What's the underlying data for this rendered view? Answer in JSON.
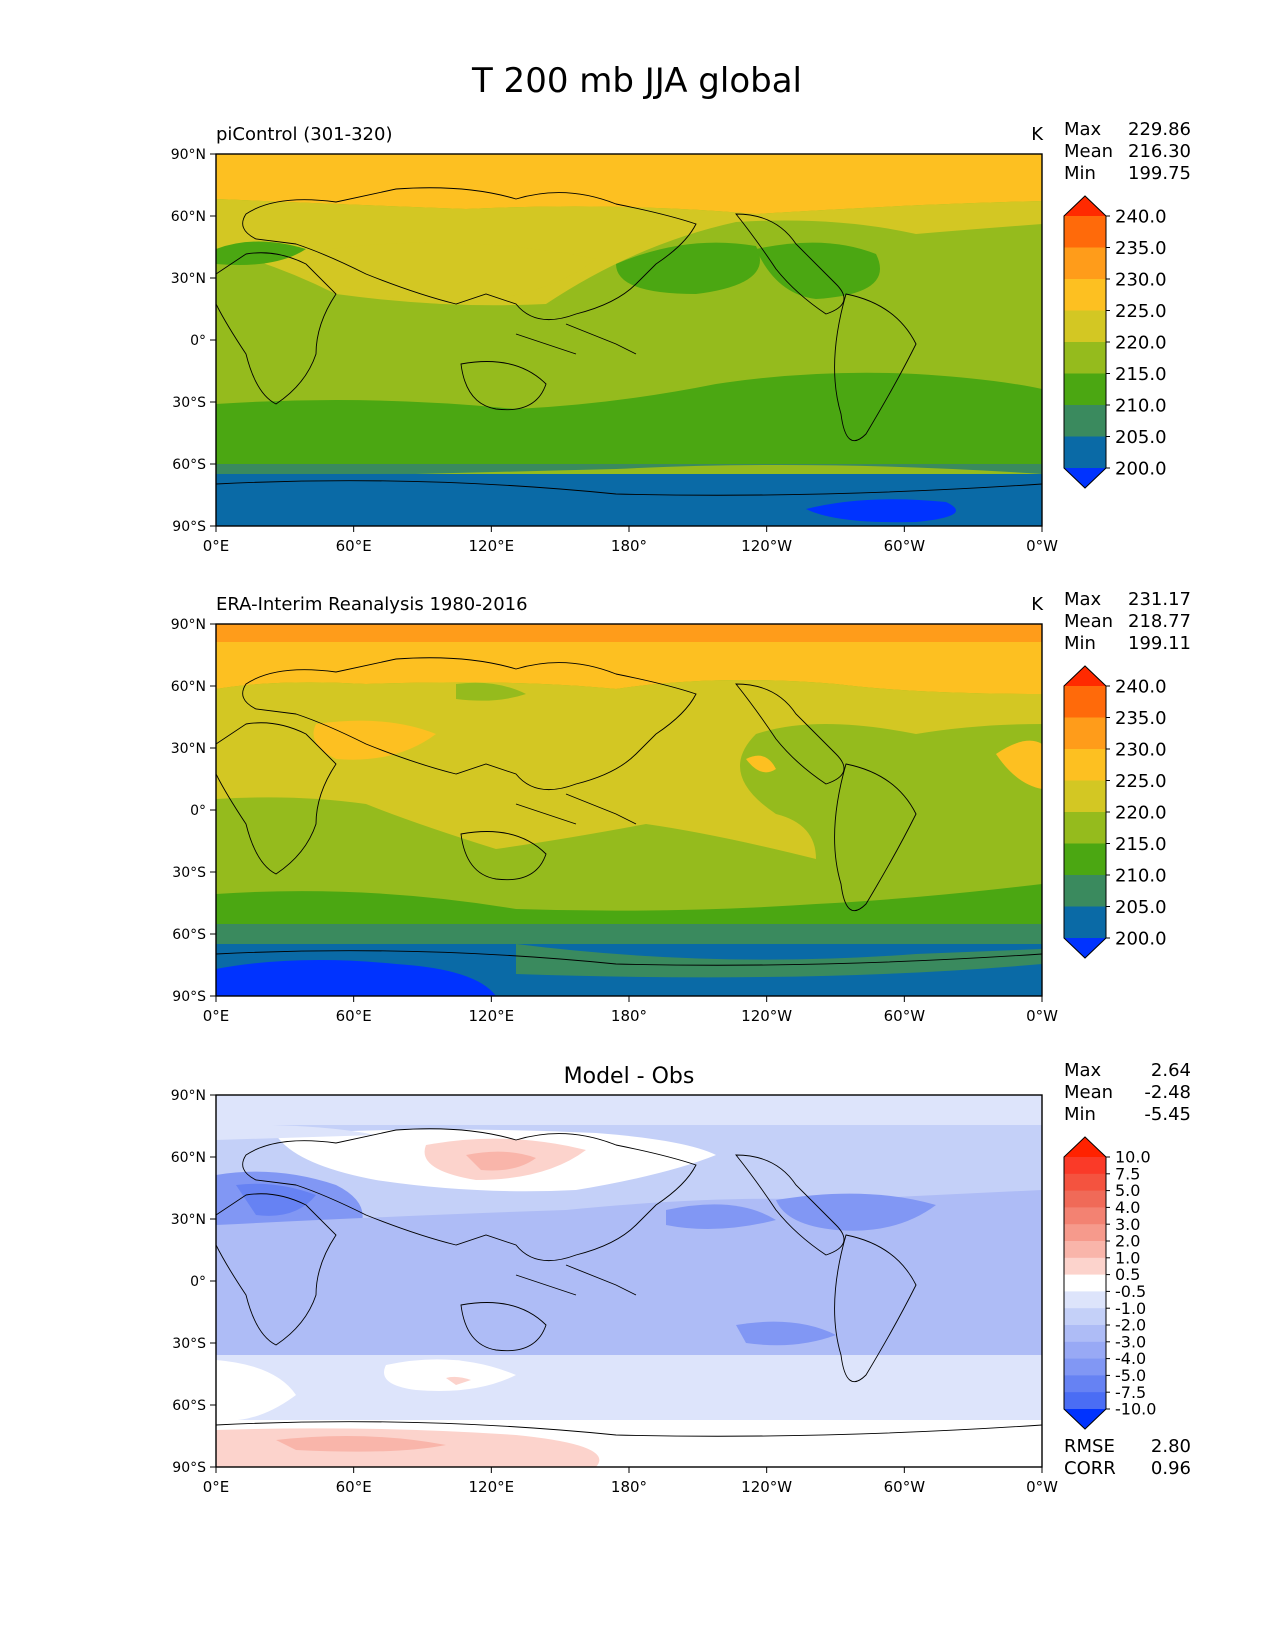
{
  "figure": {
    "title": "T 200 mb JJA global"
  },
  "axes": {
    "lat_ticks": [
      "90°N",
      "60°N",
      "30°N",
      "0°",
      "30°S",
      "60°S",
      "90°S"
    ],
    "lon_ticks": [
      "0°E",
      "60°E",
      "120°E",
      "180°",
      "120°W",
      "60°W",
      "0°W"
    ]
  },
  "panels": [
    {
      "id": "model",
      "title_left": "piControl (301-320)",
      "title_center": "",
      "units": "K",
      "stats": [
        {
          "label": "Max",
          "value": "229.86"
        },
        {
          "label": "Mean",
          "value": "216.30"
        },
        {
          "label": "Min",
          "value": "199.75"
        }
      ],
      "extra_stats": [],
      "colorbar": {
        "labels": [
          "240.0",
          "235.0",
          "230.0",
          "225.0",
          "220.0",
          "215.0",
          "210.0",
          "205.0",
          "200.0"
        ],
        "colors": [
          "#ff2a00",
          "#ff6a0a",
          "#ff9c1a",
          "#fdc021",
          "#d3c723",
          "#95bb1d",
          "#4ba712",
          "#3a8a5e",
          "#0a6aa6",
          "#0033ff"
        ]
      }
    },
    {
      "id": "obs",
      "title_left": "ERA-Interim Reanalysis 1980-2016",
      "title_center": "",
      "units": "K",
      "stats": [
        {
          "label": "Max",
          "value": "231.17"
        },
        {
          "label": "Mean",
          "value": "218.77"
        },
        {
          "label": "Min",
          "value": "199.11"
        }
      ],
      "extra_stats": [],
      "colorbar": {
        "labels": [
          "240.0",
          "235.0",
          "230.0",
          "225.0",
          "220.0",
          "215.0",
          "210.0",
          "205.0",
          "200.0"
        ],
        "colors": [
          "#ff2a00",
          "#ff6a0a",
          "#ff9c1a",
          "#fdc021",
          "#d3c723",
          "#95bb1d",
          "#4ba712",
          "#3a8a5e",
          "#0a6aa6",
          "#0033ff"
        ]
      }
    },
    {
      "id": "diff",
      "title_left": "",
      "title_center": "Model - Obs",
      "units": "",
      "stats": [
        {
          "label": "Max",
          "value": "2.64"
        },
        {
          "label": "Mean",
          "value": "-2.48"
        },
        {
          "label": "Min",
          "value": "-5.45"
        }
      ],
      "extra_stats": [
        {
          "label": "RMSE",
          "value": "2.80"
        },
        {
          "label": "CORR",
          "value": "0.96"
        }
      ],
      "colorbar": {
        "labels": [
          "10.0",
          "7.5",
          "5.0",
          "4.0",
          "3.0",
          "2.0",
          "1.0",
          "0.5",
          "-0.5",
          "-1.0",
          "-2.0",
          "-3.0",
          "-4.0",
          "-5.0",
          "-7.5",
          "-10.0"
        ],
        "colors": [
          "#ff2200",
          "#fa3a28",
          "#f4533f",
          "#f06a58",
          "#f38272",
          "#f69a8c",
          "#f9b5aa",
          "#fcd3cc",
          "#ffffff",
          "#dde4fb",
          "#c4d0f8",
          "#aebcf6",
          "#98a9f5",
          "#8197f4",
          "#6682f3",
          "#4a6df4",
          "#0033ff"
        ]
      }
    }
  ],
  "chart_data": [
    {
      "type": "heatmap",
      "title": "piControl (301-320)",
      "units": "K",
      "x": "longitude 0°E–360°",
      "y": "latitude 90°S–90°N",
      "levels": [
        200.0,
        205.0,
        210.0,
        215.0,
        220.0,
        225.0,
        230.0,
        235.0,
        240.0
      ],
      "stats": {
        "max": 229.86,
        "mean": 216.3,
        "min": 199.75
      }
    },
    {
      "type": "heatmap",
      "title": "ERA-Interim Reanalysis 1980-2016",
      "units": "K",
      "levels": [
        200.0,
        205.0,
        210.0,
        215.0,
        220.0,
        225.0,
        230.0,
        235.0,
        240.0
      ],
      "stats": {
        "max": 231.17,
        "mean": 218.77,
        "min": 199.11
      }
    },
    {
      "type": "heatmap",
      "title": "Model - Obs",
      "levels": [
        -10.0,
        -7.5,
        -5.0,
        -4.0,
        -3.0,
        -2.0,
        -1.0,
        -0.5,
        0.5,
        1.0,
        2.0,
        3.0,
        4.0,
        5.0,
        7.5,
        10.0
      ],
      "stats": {
        "max": 2.64,
        "mean": -2.48,
        "min": -5.45,
        "rmse": 2.8,
        "corr": 0.96
      }
    }
  ]
}
